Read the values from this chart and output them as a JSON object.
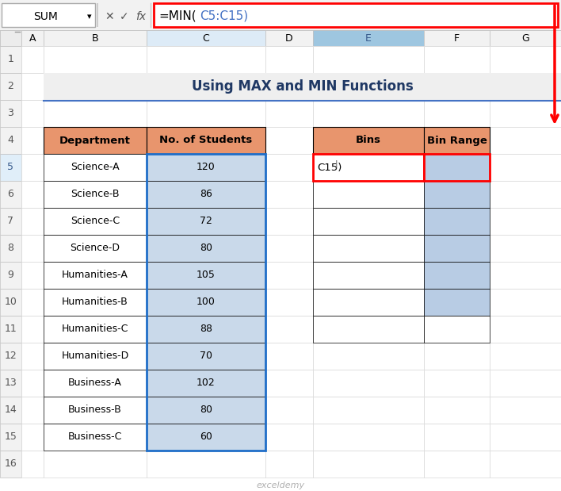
{
  "title": "Using MAX and MIN Functions",
  "formula_bar_text": "=MIN(C5:C15)",
  "name_box": "SUM",
  "dept_data": [
    [
      "Science-A",
      "120"
    ],
    [
      "Science-B",
      "86"
    ],
    [
      "Science-C",
      "72"
    ],
    [
      "Science-D",
      "80"
    ],
    [
      "Humanities-A",
      "105"
    ],
    [
      "Humanities-B",
      "100"
    ],
    [
      "Humanities-C",
      "88"
    ],
    [
      "Humanities-D",
      "70"
    ],
    [
      "Business-A",
      "102"
    ],
    [
      "Business-B",
      "80"
    ],
    [
      "Business-C",
      "60"
    ]
  ],
  "table_header": [
    "Department",
    "No. of Students"
  ],
  "bins_header": [
    "Bins",
    "Bin Range"
  ],
  "bins_cell_text": "C15)",
  "header_bg": "#E8956D",
  "data_bg_right_selected": "#C9D9EA",
  "bin_range_bg": "#B8CCE4",
  "title_bg": "#EFEFEF",
  "title_color": "#1F3864",
  "underline_color": "#4472C4",
  "red_color": "#FF0000",
  "blue_sel_color": "#1F6EC8",
  "col_E_header_bg": "#9EC6E0",
  "col_E_header_color": "#375A8C",
  "col_C_header_bg": "#DDEBF7",
  "watermark_color": "#B0B0B0",
  "formula_black": "#000000",
  "formula_blue": "#4472C4"
}
